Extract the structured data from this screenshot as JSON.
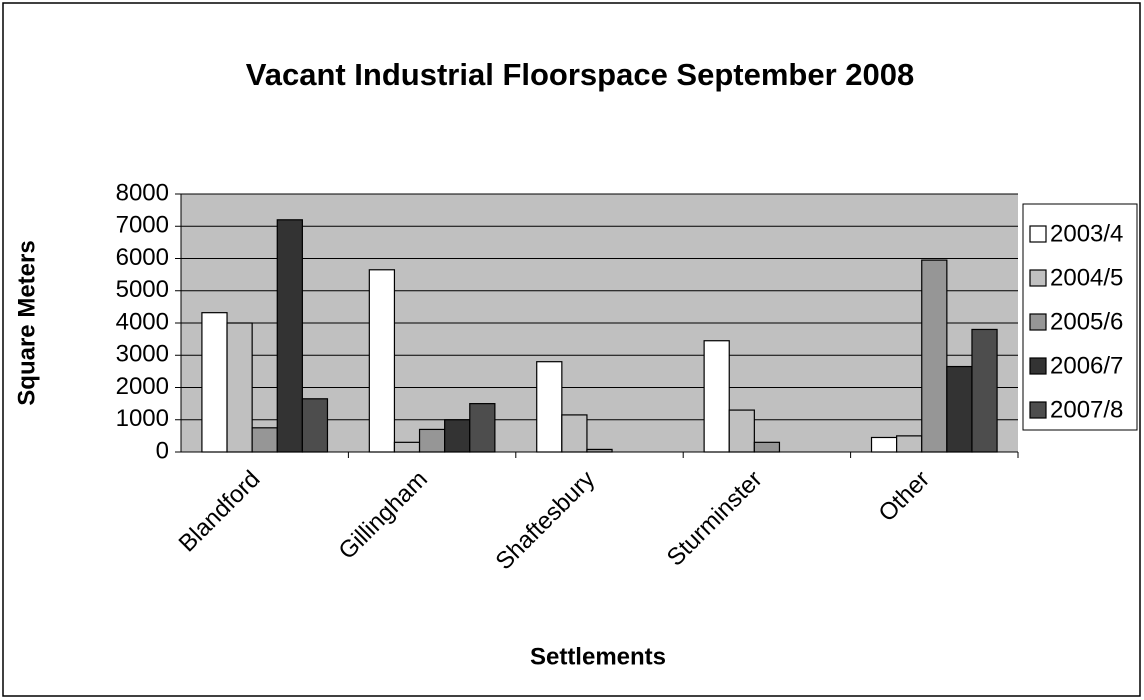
{
  "chart_data": {
    "type": "bar",
    "title": "Vacant Industrial Floorspace September 2008",
    "xlabel": "Settlements",
    "ylabel": "Square Meters",
    "categories": [
      "Blandford",
      "Gillingham",
      "Shaftesbury",
      "Sturminster",
      "Other"
    ],
    "series": [
      {
        "name": "2003/4",
        "color": "#ffffff",
        "values": [
          4320,
          5650,
          2800,
          3450,
          450
        ]
      },
      {
        "name": "2004/5",
        "color": "#c0c0c0",
        "values": [
          4000,
          300,
          1150,
          1300,
          500
        ]
      },
      {
        "name": "2005/6",
        "color": "#969696",
        "values": [
          750,
          700,
          80,
          300,
          5950
        ]
      },
      {
        "name": "2006/7",
        "color": "#333333",
        "values": [
          7200,
          1000,
          0,
          0,
          2650
        ]
      },
      {
        "name": "2007/8",
        "color": "#4d4d4d",
        "values": [
          1650,
          1500,
          0,
          0,
          3800
        ]
      }
    ],
    "ylim": [
      0,
      8000
    ],
    "yticks": [
      0,
      1000,
      2000,
      3000,
      4000,
      5000,
      6000,
      7000,
      8000
    ],
    "grid": true,
    "legend": "right"
  }
}
